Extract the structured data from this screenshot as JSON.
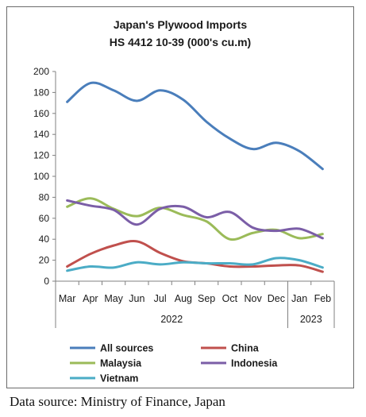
{
  "chart_data": {
    "type": "line",
    "title": "Japan's Plywood Imports",
    "subtitle": "HS 4412 10-39 (000's cu.m)",
    "categories": [
      "Mar",
      "Apr",
      "May",
      "Jun",
      "Jul",
      "Aug",
      "Sep",
      "Oct",
      "Nov",
      "Dec",
      "Jan",
      "Feb"
    ],
    "year_groups": [
      {
        "label": "2022",
        "from": 0,
        "to": 9
      },
      {
        "label": "2023",
        "from": 10,
        "to": 11
      }
    ],
    "ylim": [
      0,
      200
    ],
    "yticks": [
      0,
      20,
      40,
      60,
      80,
      100,
      120,
      140,
      160,
      180,
      200
    ],
    "grid": false,
    "legend_position": "bottom",
    "series": [
      {
        "name": "All sources",
        "color": "#4a7ebb",
        "values": [
          171,
          189,
          182,
          172,
          182,
          173,
          152,
          136,
          126,
          132,
          124,
          107
        ]
      },
      {
        "name": "China",
        "color": "#c0504d",
        "values": [
          14,
          26,
          34,
          38,
          27,
          19,
          17,
          14,
          14,
          15,
          15,
          9
        ]
      },
      {
        "name": "Malaysia",
        "color": "#9bbb59",
        "values": [
          71,
          79,
          69,
          62,
          70,
          63,
          57,
          40,
          46,
          49,
          41,
          45
        ]
      },
      {
        "name": "Indonesia",
        "color": "#7b5ea7",
        "values": [
          77,
          72,
          68,
          54,
          69,
          71,
          61,
          66,
          51,
          48,
          50,
          41
        ]
      },
      {
        "name": "Vietnam",
        "color": "#4bacc6",
        "values": [
          10,
          14,
          13,
          18,
          16,
          18,
          17,
          17,
          16,
          22,
          20,
          13
        ]
      }
    ]
  },
  "source_note": "Data source: Ministry of Finance, Japan"
}
